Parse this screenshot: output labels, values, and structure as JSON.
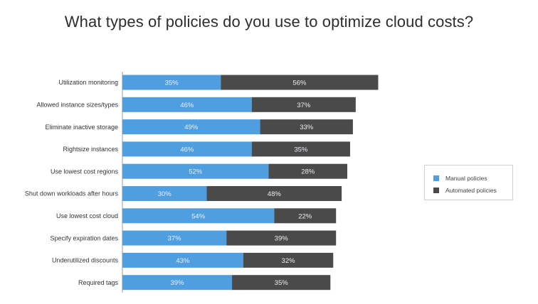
{
  "title": "What types of policies do you use to optimize cloud costs?",
  "colors": {
    "manual": "#4f9fe0",
    "automated": "#4a4a4a",
    "text": "#333333",
    "bar_label": "#e9eef3"
  },
  "legend": {
    "manual": "Manual policies",
    "automated": "Automated policies"
  },
  "chart_data": {
    "type": "bar",
    "orientation": "horizontal",
    "stacked": true,
    "title": "What types of policies do you use to optimize cloud costs?",
    "categories": [
      "Utilization monitoring",
      "Allowed instance sizes/types",
      "Eliminate inactive storage",
      "Rightsize instances",
      "Use lowest cost regions",
      "Shut down workloads after hours",
      "Use lowest cost cloud",
      "Specify expiration dates",
      "Underutilized discounts",
      "Required tags"
    ],
    "series": [
      {
        "name": "Manual policies",
        "values": [
          35,
          46,
          49,
          46,
          52,
          30,
          54,
          37,
          43,
          39
        ],
        "labels": [
          "35%",
          "46%",
          "49%",
          "46%",
          "52%",
          "30%",
          "54%",
          "37%",
          "43%",
          "39%"
        ]
      },
      {
        "name": "Automated policies",
        "values": [
          56,
          37,
          33,
          35,
          28,
          48,
          22,
          39,
          32,
          35
        ],
        "labels": [
          "56%",
          "37%",
          "33%",
          "35%",
          "28%",
          "48%",
          "22%",
          "39%",
          "32%",
          "35%"
        ]
      }
    ],
    "xlim": [
      0,
      100
    ],
    "grid": false,
    "legend_position": "right"
  }
}
